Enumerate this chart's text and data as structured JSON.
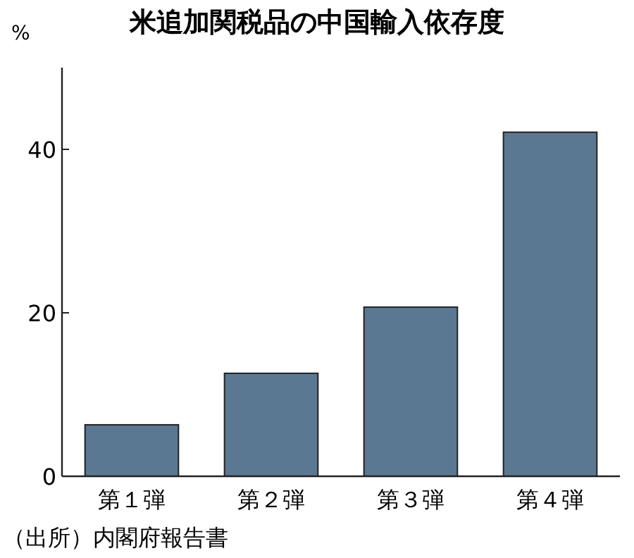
{
  "chart_data": {
    "type": "bar",
    "title": "米追加関税品の中国輸入依存度",
    "ylabel": "%",
    "categories": [
      "第１弾",
      "第２弾",
      "第３弾",
      "第４弾"
    ],
    "values": [
      6.3,
      12.6,
      20.7,
      42.1
    ],
    "color": "#5b7893",
    "ylim": [
      0,
      50
    ],
    "yticks": [
      0,
      20,
      40
    ],
    "grid": false,
    "annotations": [
      "（出所）内閣府報告書"
    ]
  }
}
